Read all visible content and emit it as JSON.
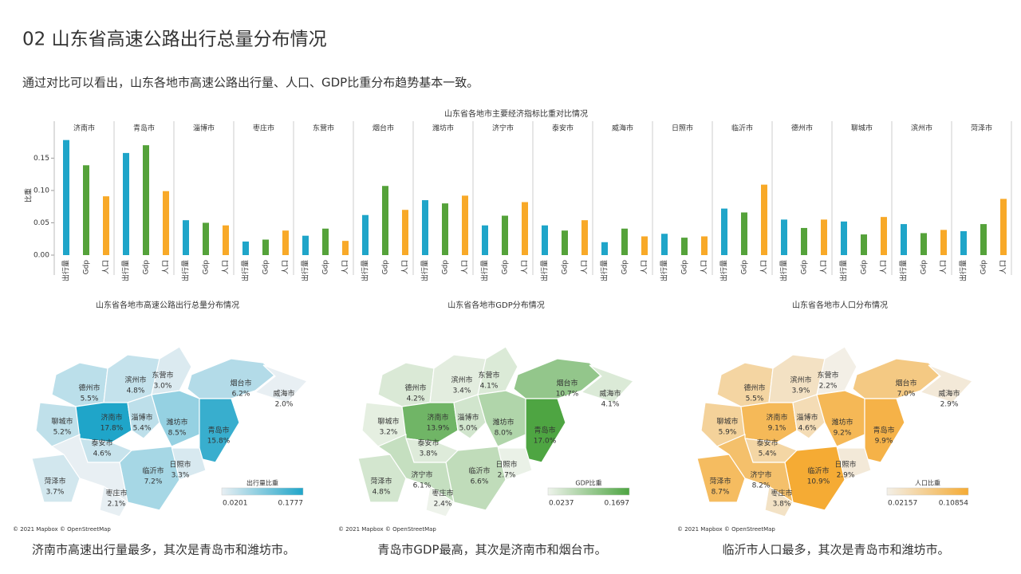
{
  "title": "02 山东省高速公路出行总量分布情况",
  "subtitle": "通过对比可以看出，山东各地市高速公路出行量、人口、GDP比重分布趋势基本一致。",
  "chart_data": [
    {
      "type": "bar",
      "title": "山东省各地市主要经济指标比重对比情况",
      "ylabel": "比重",
      "categories": [
        "济南市",
        "青岛市",
        "淄博市",
        "枣庄市",
        "东营市",
        "烟台市",
        "潍坊市",
        "济宁市",
        "泰安市",
        "威海市",
        "日照市",
        "临沂市",
        "德州市",
        "聊城市",
        "滨州市",
        "菏泽市"
      ],
      "series": [
        {
          "name": "出行量",
          "color": "#1fa5c9",
          "values": [
            0.178,
            0.158,
            0.054,
            0.021,
            0.03,
            0.062,
            0.085,
            0.046,
            0.046,
            0.02,
            0.033,
            0.072,
            0.055,
            0.052,
            0.048,
            0.037
          ]
        },
        {
          "name": "Gdp",
          "color": "#55a23a",
          "values": [
            0.139,
            0.17,
            0.05,
            0.024,
            0.041,
            0.107,
            0.08,
            0.061,
            0.038,
            0.041,
            0.027,
            0.066,
            0.042,
            0.032,
            0.034,
            0.048
          ]
        },
        {
          "name": "人口",
          "color": "#f8a928",
          "values": [
            0.091,
            0.099,
            0.046,
            0.038,
            0.022,
            0.07,
            0.092,
            0.082,
            0.054,
            0.029,
            0.029,
            0.109,
            0.055,
            0.059,
            0.039,
            0.087
          ]
        }
      ],
      "ylim": [
        0,
        0.185
      ],
      "yticks": [
        {
          "value": 0,
          "label": "0.00"
        },
        0.05,
        {
          "value": 0.1,
          "label": "0.10"
        },
        0.15
      ]
    },
    {
      "type": "map",
      "title": "山东省各地市高速公路出行总量分布情况",
      "categories": [
        "德州市",
        "滨州市",
        "东营市",
        "烟台市",
        "威海市",
        "聊城市",
        "济南市",
        "淄博市",
        "潍坊市",
        "青岛市",
        "泰安市",
        "日照市",
        "临沂市",
        "菏泽市",
        "枣庄市"
      ],
      "values": [
        0.055,
        0.048,
        0.03,
        0.062,
        0.02,
        0.052,
        0.178,
        0.054,
        0.085,
        0.158,
        0.046,
        0.033,
        0.072,
        0.037,
        0.021
      ],
      "value_labels": [
        "5.5%",
        "4.8%",
        "3.0%",
        "6.2%",
        "2.0%",
        "5.2%",
        "17.8%",
        "5.4%",
        "8.5%",
        "15.8%",
        "4.6%",
        "3.3%",
        "7.2%",
        "3.7%",
        "2.1%"
      ],
      "legend_title": "出行量比重",
      "legend_range": [
        0.0201,
        0.1777
      ],
      "colors": [
        "#e8eff3",
        "#1fa5c9"
      ],
      "credit": "© 2021 Mapbox © OpenStreetMap",
      "caption": "济南市高速出行量最多，其次是青岛市和潍坊市。"
    },
    {
      "type": "map",
      "title": "山东省各地市GDP分布情况",
      "categories": [
        "德州市",
        "滨州市",
        "东营市",
        "烟台市",
        "威海市",
        "聊城市",
        "济南市",
        "淄博市",
        "潍坊市",
        "青岛市",
        "泰安市",
        "日照市",
        "临沂市",
        "菏泽市",
        "枣庄市",
        "济宁市"
      ],
      "values": [
        0.042,
        0.034,
        0.041,
        0.107,
        0.041,
        0.032,
        0.139,
        0.05,
        0.08,
        0.17,
        0.038,
        0.027,
        0.066,
        0.048,
        0.024,
        0.061
      ],
      "value_labels": [
        "4.2%",
        "3.4%",
        "4.1%",
        "10.7%",
        "4.1%",
        "3.2%",
        "13.9%",
        "5.0%",
        "8.0%",
        "17.0%",
        "3.8%",
        "2.7%",
        "6.6%",
        "4.8%",
        "2.4%",
        "6.1%"
      ],
      "legend_title": "GDP比重",
      "legend_range": [
        0.0237,
        0.1697
      ],
      "colors": [
        "#eef3eb",
        "#4ea542"
      ],
      "credit": "© 2021 Mapbox © OpenStreetMap",
      "caption": "青岛市GDP最高，其次是济南市和烟台市。"
    },
    {
      "type": "map",
      "title": "山东省各地市人口分布情况",
      "categories": [
        "德州市",
        "滨州市",
        "东营市",
        "烟台市",
        "威海市",
        "聊城市",
        "济南市",
        "淄博市",
        "潍坊市",
        "青岛市",
        "泰安市",
        "日照市",
        "临沂市",
        "菏泽市",
        "枣庄市",
        "济宁市"
      ],
      "values": [
        0.055,
        0.039,
        0.022,
        0.07,
        0.029,
        0.059,
        0.091,
        0.046,
        0.092,
        0.099,
        0.054,
        0.029,
        0.109,
        0.087,
        0.038,
        0.082
      ],
      "value_labels": [
        "5.5%",
        "3.9%",
        "2.2%",
        "7.0%",
        "2.9%",
        "5.9%",
        "9.1%",
        "4.6%",
        "9.2%",
        "9.9%",
        "5.4%",
        "2.9%",
        "10.9%",
        "8.7%",
        "3.8%",
        "8.2%"
      ],
      "legend_title": "人口比重",
      "legend_range": [
        0.02157,
        0.10854
      ],
      "colors": [
        "#f3efe7",
        "#f5ab34"
      ],
      "credit": "© 2021 Mapbox © OpenStreetMap",
      "caption": "临沂市人口最多，其次是青岛市和潍坊市。"
    }
  ]
}
